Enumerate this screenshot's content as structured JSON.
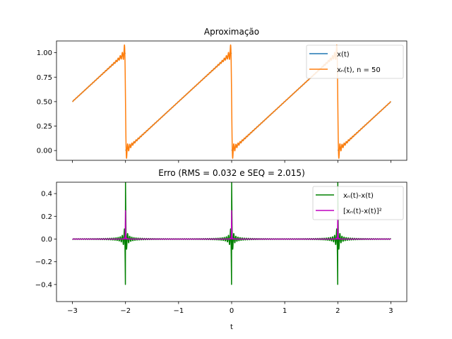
{
  "chart_data": [
    {
      "type": "line",
      "title": "Aproximação",
      "xlabel": "",
      "ylabel": "",
      "xlim": [
        -3.3,
        3.3
      ],
      "ylim": [
        -0.1,
        1.12
      ],
      "x_ticks": [
        -3,
        -2,
        -1,
        0,
        1,
        2,
        3
      ],
      "y_ticks": [
        0.0,
        0.25,
        0.5,
        0.75,
        1.0
      ],
      "y_tick_labels": [
        "0.00",
        "0.25",
        "0.50",
        "0.75",
        "1.00"
      ],
      "legend_placement": "upper-right",
      "grid": false,
      "series": [
        {
          "name": "x(t)",
          "color": "#1f77b4",
          "kind": "sawtooth",
          "period": 2,
          "t_range": [
            -3,
            3
          ]
        },
        {
          "name": "xₙ(t), n = 50",
          "color": "#ff7f0e",
          "kind": "fourier_sawtooth",
          "harmonics": 50,
          "period": 2,
          "t_range": [
            -3,
            3
          ]
        }
      ]
    },
    {
      "type": "line",
      "title": "Erro (RMS = 0.032 e SEQ = 2.015)",
      "xlabel": "t",
      "ylabel": "",
      "xlim": [
        -3.3,
        3.3
      ],
      "ylim": [
        -0.55,
        0.5
      ],
      "x_ticks": [
        -3,
        -2,
        -1,
        0,
        1,
        2,
        3
      ],
      "x_tick_labels": [
        "−3",
        "−2",
        "−1",
        "0",
        "1",
        "2",
        "3"
      ],
      "y_ticks": [
        -0.4,
        -0.2,
        0.0,
        0.2,
        0.4
      ],
      "y_tick_labels": [
        "−0.4",
        "−0.2",
        "0.0",
        "0.2",
        "0.4"
      ],
      "legend_placement": "upper-right",
      "grid": false,
      "series": [
        {
          "name": "xₙ(t)-x(t)",
          "color": "#008000",
          "kind": "error",
          "t_range": [
            -3,
            3
          ]
        },
        {
          "name": "[xₙ(t)-x(t)]²",
          "color": "#bf00bf",
          "kind": "squared_error",
          "t_range": [
            -3,
            3
          ]
        }
      ]
    }
  ]
}
